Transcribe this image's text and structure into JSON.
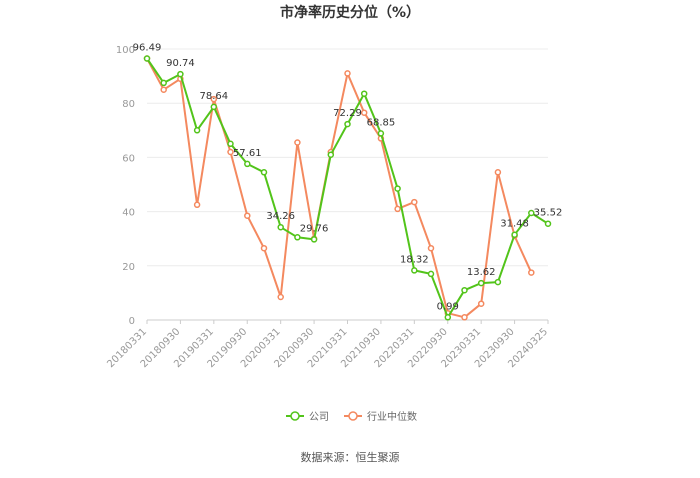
{
  "chart_data": {
    "type": "line",
    "title": "市净率历史分位（%）",
    "source": "数据来源：恒生聚源",
    "ylim": [
      0,
      100
    ],
    "yticks": [
      0,
      20,
      40,
      60,
      80,
      100
    ],
    "x_tick_labels": [
      "20180331",
      "20180930",
      "20190331",
      "20190930",
      "20200331",
      "20200930",
      "20210331",
      "20210930",
      "20220331",
      "20220930",
      "20230331",
      "20230930",
      "20240325"
    ],
    "legend_position": "bottom",
    "series": [
      {
        "name": "公司",
        "color": "#52c41a",
        "values": [
          96.49,
          87.5,
          90.74,
          70.0,
          78.64,
          65.0,
          57.61,
          54.5,
          34.26,
          30.5,
          29.76,
          61.0,
          72.29,
          83.5,
          68.85,
          48.5,
          18.32,
          17.0,
          0.99,
          11.0,
          13.62,
          14.0,
          31.48,
          39.5,
          35.52
        ]
      },
      {
        "name": "行业中位数",
        "color": "#f4895f",
        "values": [
          96.5,
          85.0,
          89.0,
          42.5,
          81.5,
          62.0,
          38.5,
          26.5,
          8.5,
          65.5,
          30.0,
          62.0,
          91.0,
          76.5,
          67.0,
          41.0,
          43.5,
          26.5,
          2.5,
          1.0,
          6.0,
          54.5,
          31.0,
          17.5,
          null
        ]
      }
    ],
    "data_labels": [
      {
        "series": 0,
        "index": 0,
        "text": "96.49"
      },
      {
        "series": 0,
        "index": 2,
        "text": "90.74"
      },
      {
        "series": 0,
        "index": 4,
        "text": "78.64"
      },
      {
        "series": 0,
        "index": 6,
        "text": "57.61"
      },
      {
        "series": 0,
        "index": 8,
        "text": "34.26"
      },
      {
        "series": 0,
        "index": 10,
        "text": "29.76"
      },
      {
        "series": 0,
        "index": 12,
        "text": "72.29"
      },
      {
        "series": 0,
        "index": 14,
        "text": "68.85"
      },
      {
        "series": 0,
        "index": 16,
        "text": "18.32"
      },
      {
        "series": 0,
        "index": 18,
        "text": "0.99"
      },
      {
        "series": 0,
        "index": 20,
        "text": "13.62"
      },
      {
        "series": 0,
        "index": 22,
        "text": "31.48"
      },
      {
        "series": 0,
        "index": 24,
        "text": "35.52"
      }
    ]
  }
}
